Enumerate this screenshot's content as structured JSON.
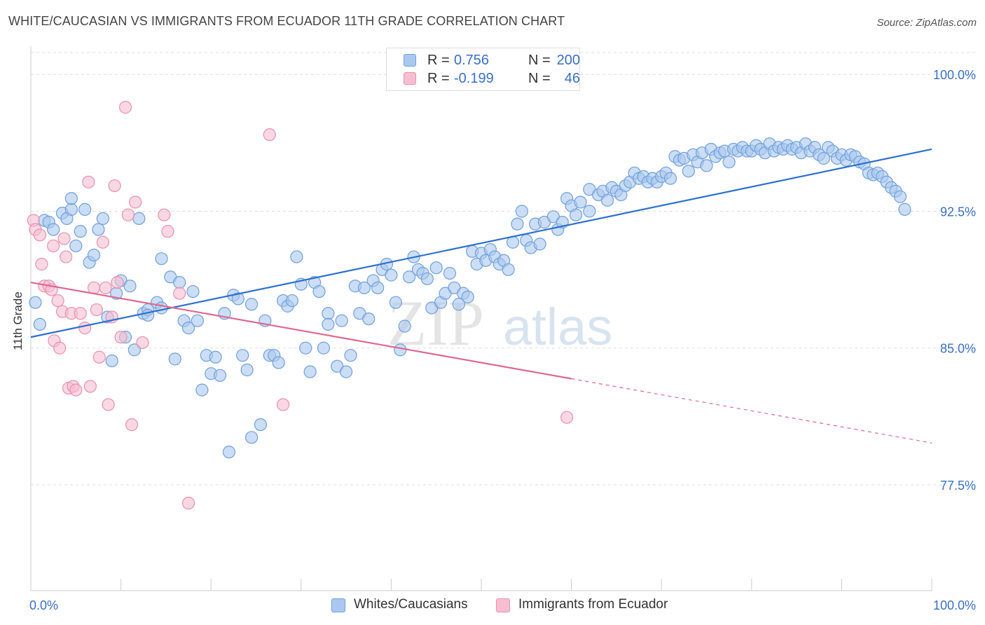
{
  "title": "WHITE/CAUCASIAN VS IMMIGRANTS FROM ECUADOR 11TH GRADE CORRELATION CHART",
  "source": "Source: ZipAtlas.com",
  "watermark": {
    "part1": "ZIP",
    "part2": "atlas"
  },
  "legend_top": {
    "rows": [
      {
        "r_label": "R =",
        "r_value": "0.756",
        "n_label": "N =",
        "n_value": "200"
      },
      {
        "r_label": "R =",
        "r_value": "-0.199",
        "n_label": "N =",
        "n_value": "46"
      }
    ]
  },
  "legend_bottom": [
    "Whites/Caucasians",
    "Immigrants from Ecuador"
  ],
  "colors": {
    "blue_fill": "#aac8ef",
    "blue_stroke": "#6f9fdc",
    "blue_line": "#2c70d0",
    "pink_fill": "#f7bed1",
    "pink_stroke": "#e890ad",
    "pink_line": "#e0668f",
    "accent_text": "#3a6fc4",
    "grid": "#dddddd"
  },
  "chart_data": {
    "type": "scatter",
    "title": "WHITE/CAUCASIAN VS IMMIGRANTS FROM ECUADOR 11TH GRADE CORRELATION CHART",
    "xlabel": "",
    "ylabel": "11th Grade",
    "xlim": [
      0,
      100
    ],
    "ylim": [
      71.7,
      101.2
    ],
    "x_tick_labels": [
      "0.0%",
      "100.0%"
    ],
    "y_ticks": [
      {
        "value": 100.0,
        "label": "100.0%"
      },
      {
        "value": 92.5,
        "label": "92.5%"
      },
      {
        "value": 85.0,
        "label": "85.0%"
      },
      {
        "value": 77.5,
        "label": "77.5%"
      }
    ],
    "grid": true,
    "legend_position": "bottom",
    "series": [
      {
        "name": "Whites/Caucasians",
        "color": "#aac8ef",
        "R": 0.756,
        "N": 200,
        "trend": {
          "x": [
            0,
            100
          ],
          "y": [
            85.6,
            95.9
          ],
          "dashed_from_x": null
        },
        "points": [
          [
            0.5,
            87.5
          ],
          [
            1,
            86.3
          ],
          [
            1.5,
            92
          ],
          [
            2,
            91.9
          ],
          [
            2.5,
            91.5
          ],
          [
            3.5,
            92.4
          ],
          [
            4,
            92.1
          ],
          [
            4.5,
            92.6
          ],
          [
            4.5,
            93.2
          ],
          [
            5,
            90.6
          ],
          [
            5.5,
            91.4
          ],
          [
            6,
            92.6
          ],
          [
            6.5,
            89.7
          ],
          [
            7,
            90.1
          ],
          [
            7.5,
            91.5
          ],
          [
            8,
            92.1
          ],
          [
            8.5,
            86.7
          ],
          [
            9,
            84.3
          ],
          [
            9.5,
            88
          ],
          [
            10,
            88.7
          ],
          [
            10.5,
            85.6
          ],
          [
            11,
            88.4
          ],
          [
            11.5,
            84.9
          ],
          [
            12,
            92.1
          ],
          [
            12.5,
            86.9
          ],
          [
            13,
            87.1
          ],
          [
            13,
            86.8
          ],
          [
            14,
            87.5
          ],
          [
            14.5,
            87.2
          ],
          [
            14.5,
            89.9
          ],
          [
            15.5,
            88.9
          ],
          [
            16,
            84.4
          ],
          [
            16.5,
            88.6
          ],
          [
            17,
            86.5
          ],
          [
            17.5,
            86.1
          ],
          [
            18,
            88.1
          ],
          [
            18.5,
            86.5
          ],
          [
            19,
            82.7
          ],
          [
            19.5,
            84.6
          ],
          [
            20,
            83.6
          ],
          [
            20.5,
            84.5
          ],
          [
            21,
            83.5
          ],
          [
            21.5,
            86.9
          ],
          [
            22,
            79.3
          ],
          [
            22.5,
            87.9
          ],
          [
            23,
            87.7
          ],
          [
            23.5,
            84.6
          ],
          [
            24,
            83.8
          ],
          [
            24.5,
            87.4
          ],
          [
            24.5,
            80.1
          ],
          [
            25.5,
            80.8
          ],
          [
            26,
            86.5
          ],
          [
            26.5,
            84.6
          ],
          [
            27,
            84.6
          ],
          [
            27.5,
            84.2
          ],
          [
            28,
            87.6
          ],
          [
            28.5,
            87.3
          ],
          [
            29,
            87.6
          ],
          [
            29.5,
            90
          ],
          [
            30,
            88.5
          ],
          [
            30.5,
            85
          ],
          [
            31,
            83.7
          ],
          [
            31.5,
            88.6
          ],
          [
            32,
            88.1
          ],
          [
            32.5,
            85
          ],
          [
            33,
            86.9
          ],
          [
            33,
            86.3
          ],
          [
            34,
            84
          ],
          [
            34.5,
            86.5
          ],
          [
            35,
            83.7
          ],
          [
            35.5,
            84.6
          ],
          [
            36,
            88.4
          ],
          [
            36.5,
            86.9
          ],
          [
            37,
            88.3
          ],
          [
            37.5,
            86.6
          ],
          [
            38,
            88.7
          ],
          [
            38.5,
            88.3
          ],
          [
            39,
            89.3
          ],
          [
            39.5,
            89.6
          ],
          [
            40,
            89
          ],
          [
            40.5,
            87.5
          ],
          [
            41,
            84.9
          ],
          [
            41.5,
            86.2
          ],
          [
            42,
            88.9
          ],
          [
            42.5,
            90
          ],
          [
            43,
            89.3
          ],
          [
            43.5,
            89.1
          ],
          [
            44,
            88.8
          ],
          [
            44.5,
            87.2
          ],
          [
            45,
            89.4
          ],
          [
            45.5,
            87.5
          ],
          [
            46,
            88
          ],
          [
            46.5,
            89.1
          ],
          [
            47,
            88.3
          ],
          [
            47.5,
            87.4
          ],
          [
            48,
            88
          ],
          [
            48.5,
            87.8
          ],
          [
            49,
            90.3
          ],
          [
            49.5,
            89.6
          ],
          [
            50,
            90.2
          ],
          [
            50.5,
            89.8
          ],
          [
            51,
            90.4
          ],
          [
            51.5,
            90
          ],
          [
            52,
            89.6
          ],
          [
            52.5,
            89.8
          ],
          [
            53,
            89.3
          ],
          [
            53.5,
            90.8
          ],
          [
            54,
            91.8
          ],
          [
            54.5,
            92.5
          ],
          [
            55,
            90.9
          ],
          [
            55.5,
            90.5
          ],
          [
            56,
            91.8
          ],
          [
            56.5,
            90.7
          ],
          [
            57,
            91.9
          ],
          [
            58,
            92.2
          ],
          [
            58.5,
            91.5
          ],
          [
            59,
            91.9
          ],
          [
            59.5,
            93.2
          ],
          [
            60,
            92.8
          ],
          [
            60.5,
            92.3
          ],
          [
            61,
            93
          ],
          [
            62,
            92.5
          ],
          [
            62,
            93.7
          ],
          [
            63,
            93.4
          ],
          [
            63.5,
            93.6
          ],
          [
            64,
            93.1
          ],
          [
            64.5,
            93.8
          ],
          [
            65,
            93.6
          ],
          [
            65.5,
            93.4
          ],
          [
            66,
            93.9
          ],
          [
            66.5,
            94.1
          ],
          [
            67,
            94.6
          ],
          [
            67.5,
            94.3
          ],
          [
            68,
            94.4
          ],
          [
            68.5,
            94.1
          ],
          [
            69,
            94.3
          ],
          [
            69.5,
            94.1
          ],
          [
            70,
            94.4
          ],
          [
            70.5,
            94.6
          ],
          [
            71,
            94.3
          ],
          [
            71.5,
            95.5
          ],
          [
            72,
            95.3
          ],
          [
            72.5,
            95.4
          ],
          [
            73,
            94.7
          ],
          [
            73.5,
            95.6
          ],
          [
            74,
            95.2
          ],
          [
            74.5,
            95.7
          ],
          [
            75,
            95
          ],
          [
            75.5,
            95.9
          ],
          [
            76,
            95.5
          ],
          [
            76.5,
            95.7
          ],
          [
            77,
            95.8
          ],
          [
            77.5,
            95.2
          ],
          [
            78,
            95.9
          ],
          [
            78.5,
            95.8
          ],
          [
            79,
            96
          ],
          [
            79.5,
            95.8
          ],
          [
            80,
            95.8
          ],
          [
            80.5,
            96.1
          ],
          [
            81,
            95.9
          ],
          [
            81.5,
            95.7
          ],
          [
            82,
            96.2
          ],
          [
            82.5,
            95.8
          ],
          [
            83,
            96
          ],
          [
            83.5,
            95.9
          ],
          [
            84,
            96.1
          ],
          [
            84.5,
            95.9
          ],
          [
            85,
            96
          ],
          [
            85.5,
            95.7
          ],
          [
            86,
            96.2
          ],
          [
            86.5,
            95.8
          ],
          [
            87,
            96
          ],
          [
            87.5,
            95.6
          ],
          [
            88,
            95.4
          ],
          [
            88.5,
            96
          ],
          [
            89,
            95.8
          ],
          [
            89.5,
            95.4
          ],
          [
            90,
            95.6
          ],
          [
            90.5,
            95.3
          ],
          [
            91,
            95.6
          ],
          [
            91.5,
            95.5
          ],
          [
            92,
            95.2
          ],
          [
            92.5,
            95.1
          ],
          [
            93,
            94.6
          ],
          [
            93.5,
            94.5
          ],
          [
            94,
            94.6
          ],
          [
            94.5,
            94.4
          ],
          [
            95,
            94.1
          ],
          [
            95.5,
            93.8
          ],
          [
            96,
            93.6
          ],
          [
            96.5,
            93.3
          ],
          [
            97,
            92.6
          ]
        ]
      },
      {
        "name": "Immigrants from Ecuador",
        "color": "#f7bed1",
        "R": -0.199,
        "N": 46,
        "trend": {
          "x": [
            0,
            100
          ],
          "y": [
            88.6,
            79.8
          ],
          "dashed_from_x": 60
        },
        "points": [
          [
            0.3,
            92
          ],
          [
            0.5,
            91.5
          ],
          [
            1,
            91.2
          ],
          [
            1.2,
            89.6
          ],
          [
            1.5,
            88.4
          ],
          [
            2,
            88.4
          ],
          [
            2.3,
            88.2
          ],
          [
            2.5,
            90.6
          ],
          [
            2.6,
            85.4
          ],
          [
            3,
            87.6
          ],
          [
            3.2,
            85
          ],
          [
            3.5,
            87
          ],
          [
            3.7,
            91
          ],
          [
            3.9,
            90
          ],
          [
            4.2,
            82.8
          ],
          [
            4.5,
            86.9
          ],
          [
            4.7,
            82.9
          ],
          [
            5,
            82.7
          ],
          [
            5.5,
            86.9
          ],
          [
            6,
            86.1
          ],
          [
            6.4,
            94.1
          ],
          [
            6.6,
            82.9
          ],
          [
            7,
            88.3
          ],
          [
            7.3,
            87.1
          ],
          [
            7.6,
            84.5
          ],
          [
            8,
            90.8
          ],
          [
            8.3,
            88.3
          ],
          [
            8.6,
            81.9
          ],
          [
            9,
            86.7
          ],
          [
            9.3,
            93.9
          ],
          [
            9.6,
            88.6
          ],
          [
            10,
            85.6
          ],
          [
            10.5,
            98.2
          ],
          [
            10.8,
            92.3
          ],
          [
            11.2,
            80.8
          ],
          [
            11.6,
            93
          ],
          [
            12.4,
            85.3
          ],
          [
            14.8,
            92.3
          ],
          [
            15.2,
            91.4
          ],
          [
            16.5,
            88
          ],
          [
            17.5,
            76.5
          ],
          [
            26.5,
            96.7
          ],
          [
            28,
            81.9
          ],
          [
            59.5,
            81.2
          ]
        ]
      }
    ]
  }
}
